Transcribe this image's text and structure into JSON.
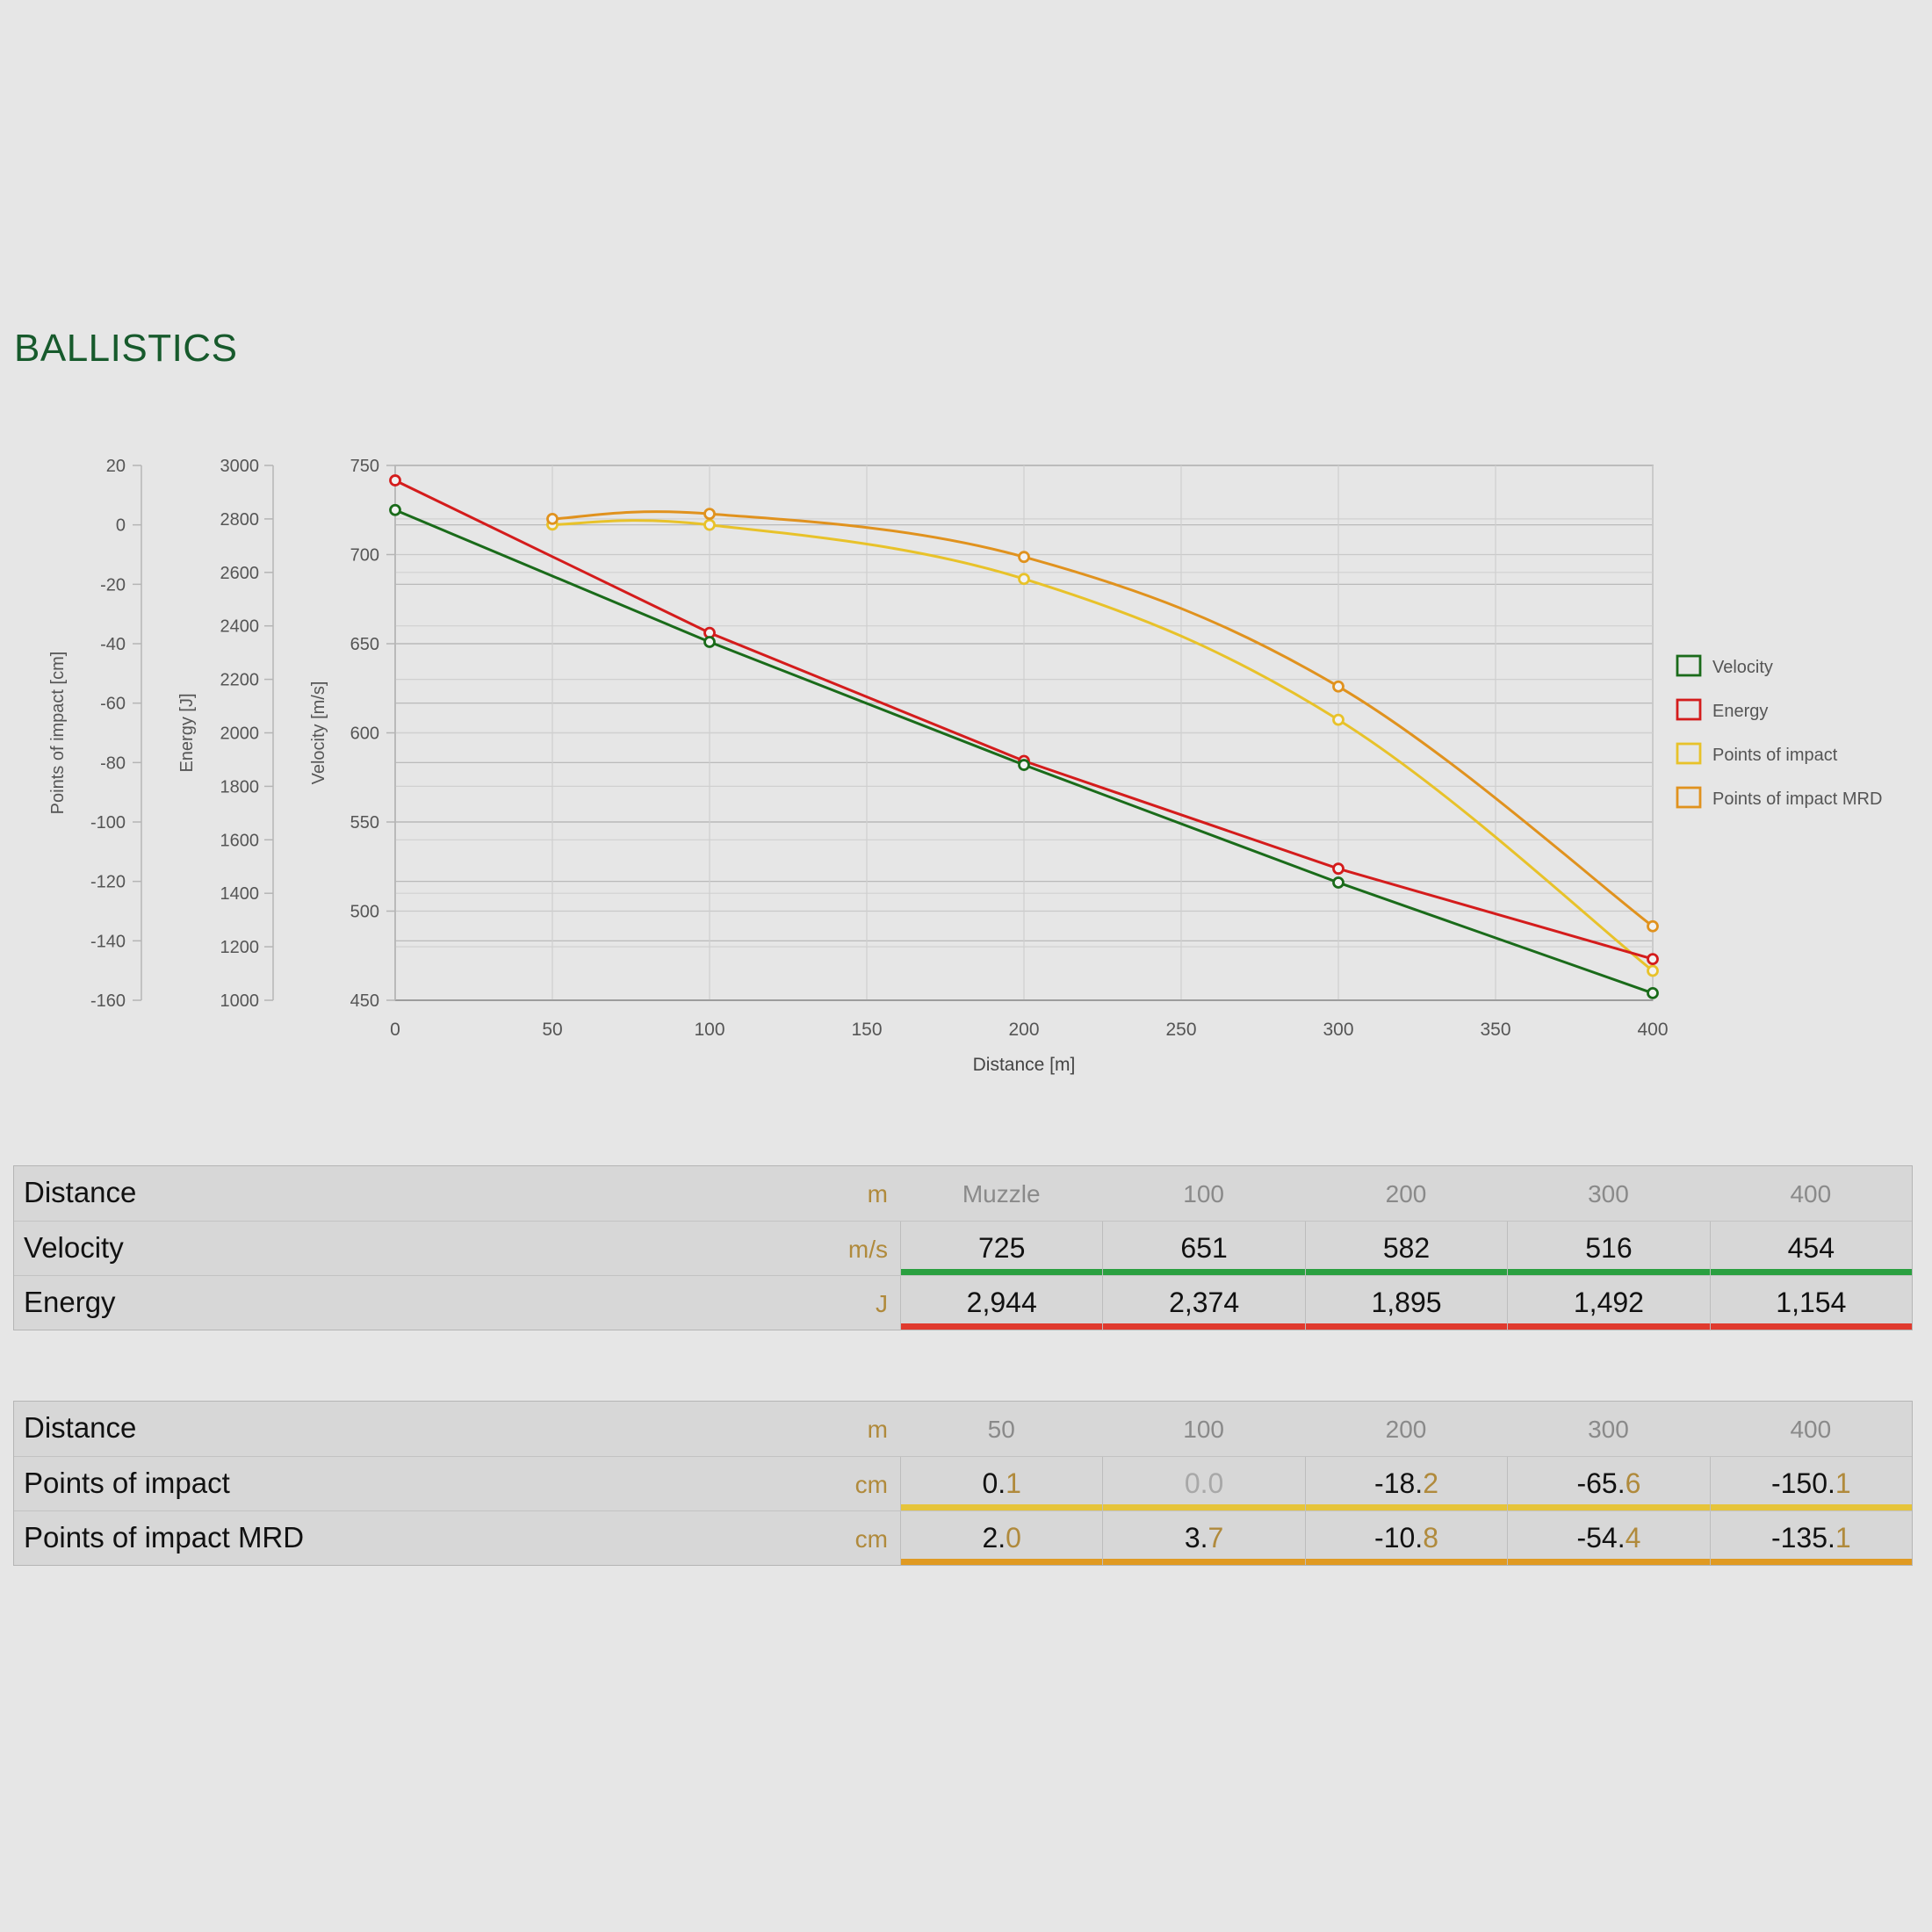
{
  "page": {
    "title": "BALLISTICS"
  },
  "chart_data": {
    "type": "line",
    "xlabel": "Distance [m]",
    "x_ticks": [
      0,
      50,
      100,
      150,
      200,
      250,
      300,
      350,
      400
    ],
    "xlim": [
      0,
      400
    ],
    "axes": {
      "poi": {
        "label": "Points of impact [cm]",
        "ylim": [
          -160,
          20
        ],
        "ticks": [
          20,
          0,
          -20,
          -40,
          -60,
          -80,
          -100,
          -120,
          -140,
          -160
        ]
      },
      "energy": {
        "label": "Energy [J]",
        "ylim": [
          1000,
          3000
        ],
        "ticks": [
          3000,
          2800,
          2600,
          2400,
          2200,
          2000,
          1800,
          1600,
          1400,
          1200,
          1000
        ]
      },
      "velocity": {
        "label": "Velocity [m/s]",
        "ylim": [
          450,
          750
        ],
        "ticks": [
          750,
          700,
          650,
          600,
          550,
          500,
          450
        ]
      }
    },
    "series": [
      {
        "name": "Velocity",
        "axis": "velocity",
        "color": "#1a6b1a",
        "x": [
          0,
          100,
          200,
          300,
          400
        ],
        "values": [
          725,
          651,
          582,
          516,
          454
        ]
      },
      {
        "name": "Energy",
        "axis": "energy",
        "color": "#d41c1c",
        "x": [
          0,
          100,
          200,
          300,
          400
        ],
        "values": [
          2944,
          2374,
          1895,
          1492,
          1154
        ]
      },
      {
        "name": "Points of impact",
        "axis": "poi",
        "color": "#e8c22a",
        "x": [
          50,
          100,
          200,
          300,
          400
        ],
        "values": [
          0.1,
          0.0,
          -18.2,
          -65.6,
          -150.1
        ]
      },
      {
        "name": "Points of impact MRD",
        "axis": "poi",
        "color": "#e0921e",
        "x": [
          50,
          100,
          200,
          300,
          400
        ],
        "values": [
          2.0,
          3.7,
          -10.8,
          -54.4,
          -135.1
        ]
      }
    ],
    "legend": "right",
    "grid": true
  },
  "table1": {
    "header": {
      "label": "Distance",
      "unit": "m",
      "cells": [
        "Muzzle",
        "100",
        "200",
        "300",
        "400"
      ]
    },
    "rows": [
      {
        "label": "Velocity",
        "unit": "m/s",
        "color": "#2aa040",
        "cells": [
          "725",
          "651",
          "582",
          "516",
          "454"
        ]
      },
      {
        "label": "Energy",
        "unit": "J",
        "color": "#e03a2e",
        "cells": [
          "2,944",
          "2,374",
          "1,895",
          "1,492",
          "1,154"
        ]
      }
    ]
  },
  "table2": {
    "header": {
      "label": "Distance",
      "unit": "m",
      "cells": [
        "50",
        "100",
        "200",
        "300",
        "400"
      ]
    },
    "rows": [
      {
        "label": "Points of impact",
        "unit": "cm",
        "color": "#e6c43a",
        "cells": [
          "0.1",
          "0.0",
          "-18.2",
          "-65.6",
          "-150.1"
        ]
      },
      {
        "label": "Points of impact MRD",
        "unit": "cm",
        "color": "#e09a22",
        "cells": [
          "2.0",
          "3.7",
          "-10.8",
          "-54.4",
          "-135.1"
        ]
      }
    ]
  }
}
